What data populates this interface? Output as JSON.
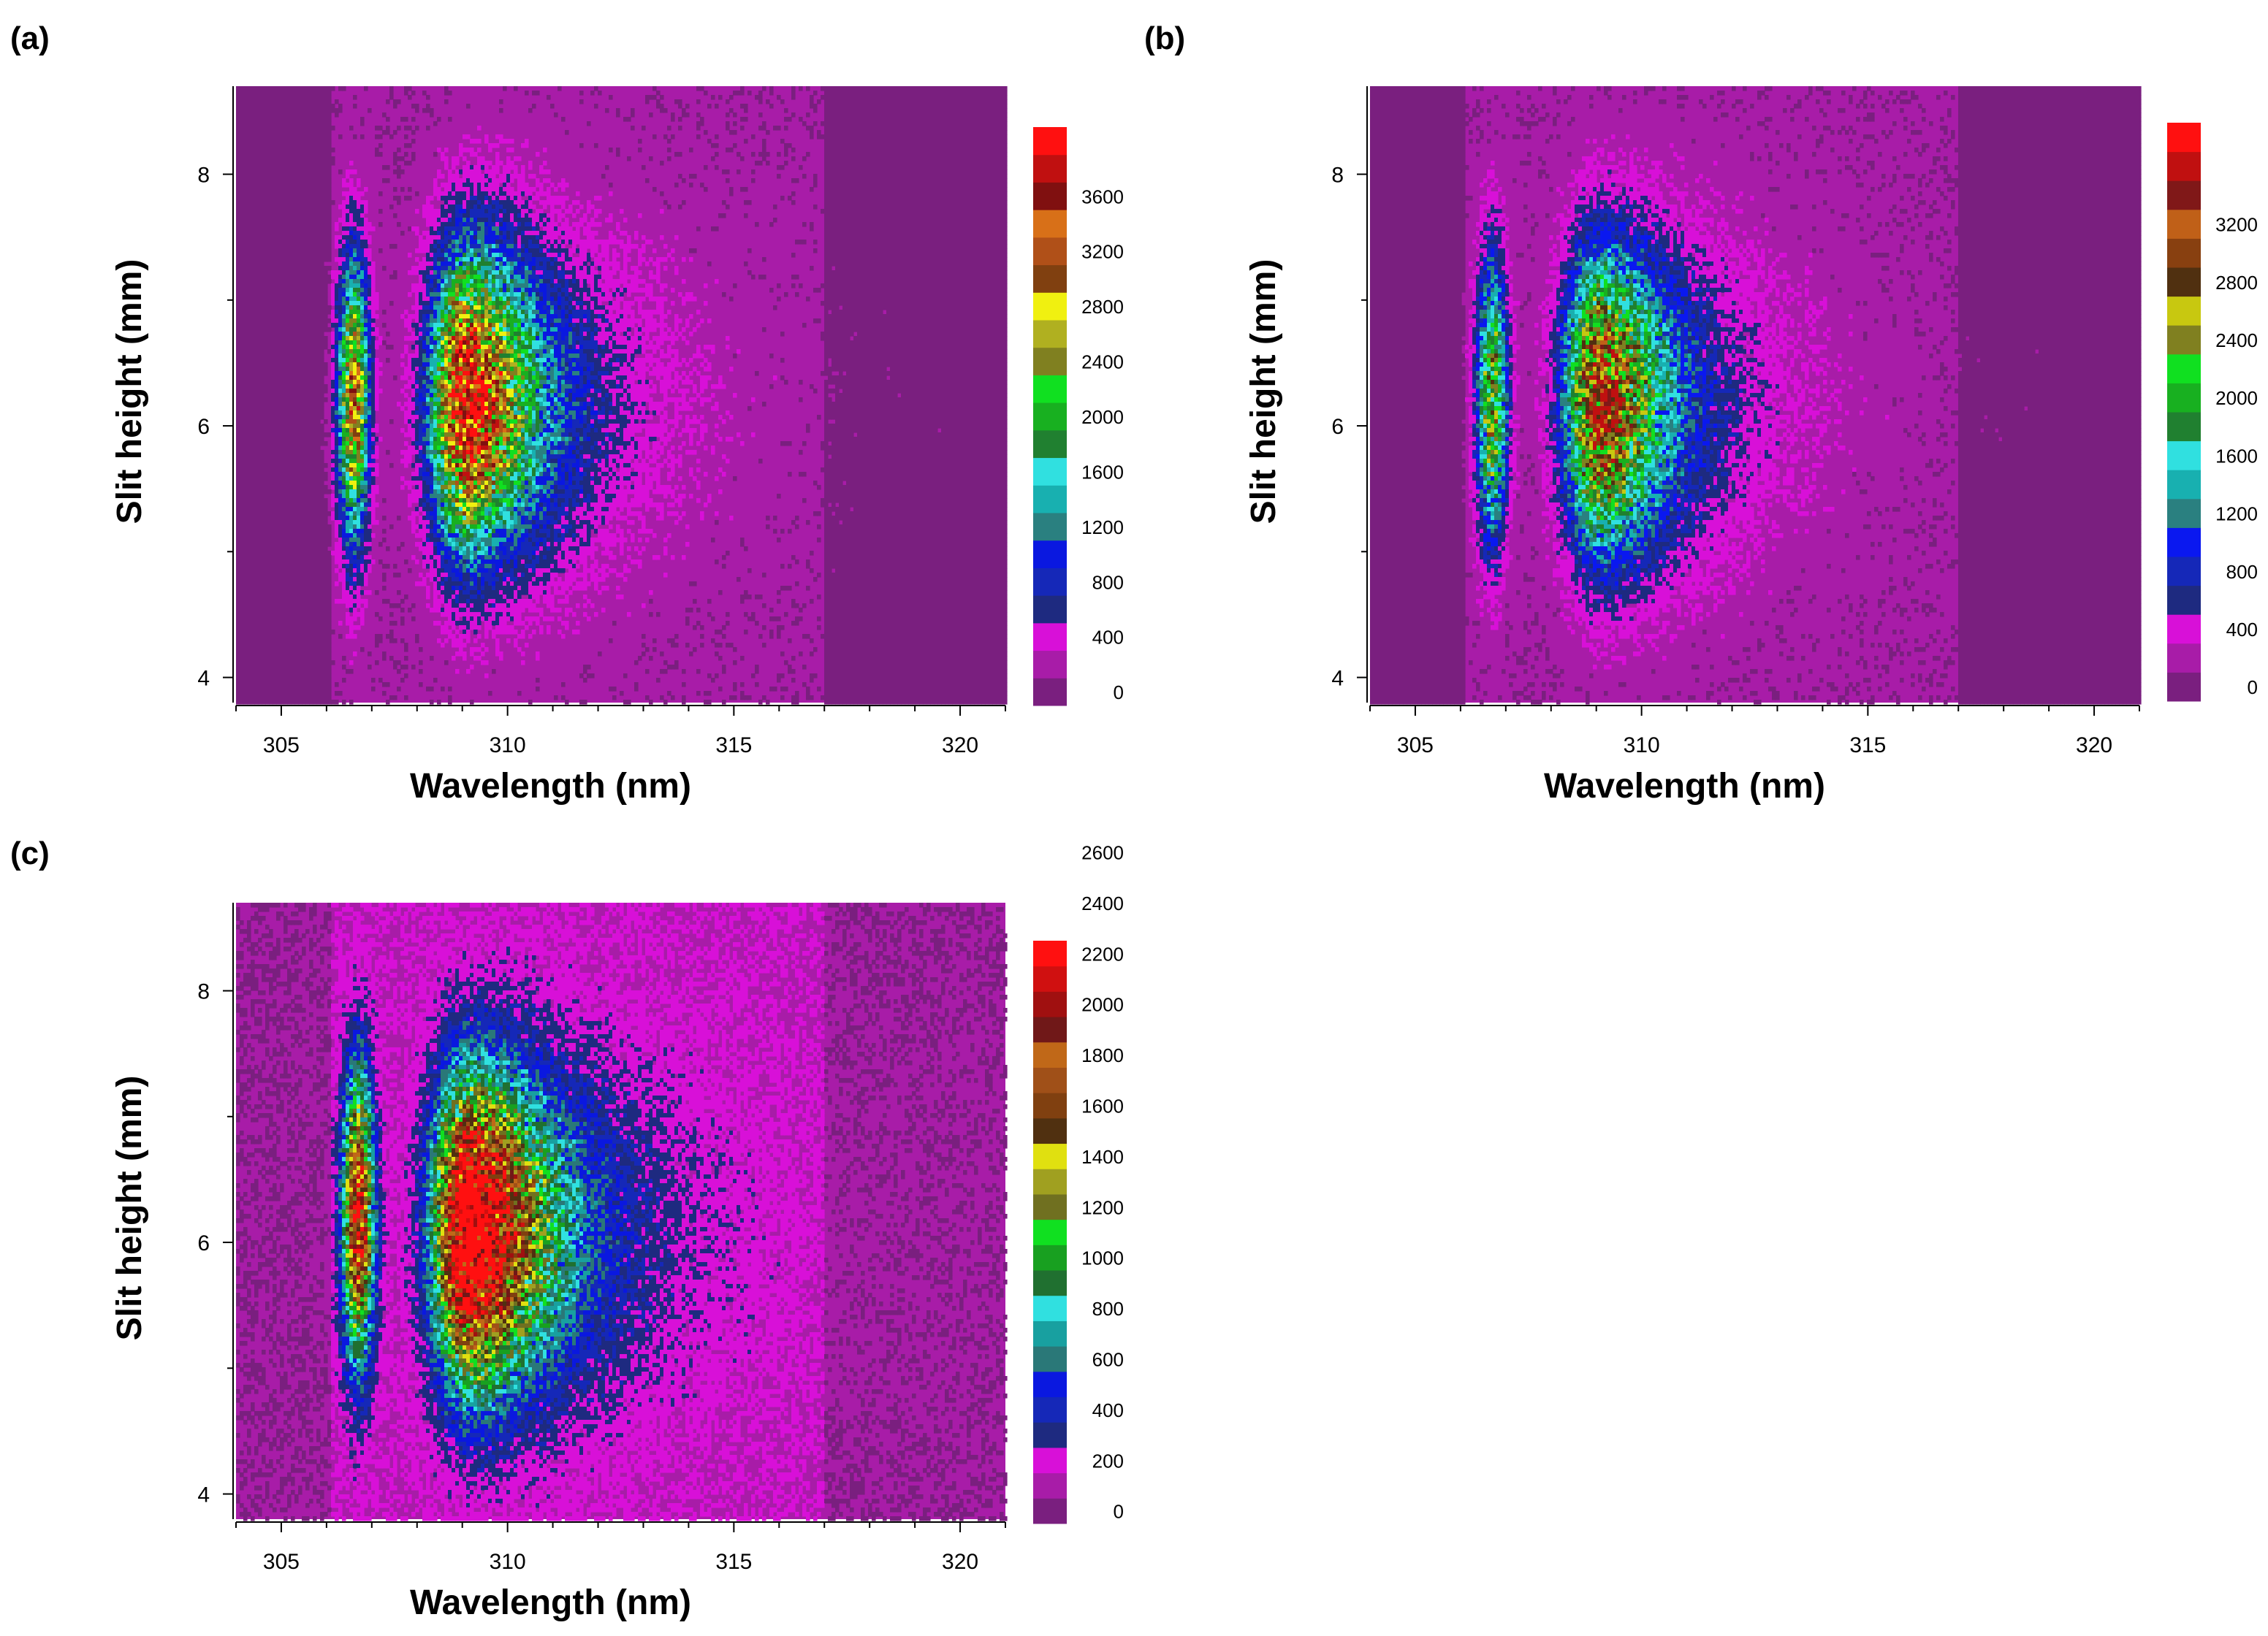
{
  "chart_data": [
    {
      "type": "heatmap",
      "panel_label": "(a)",
      "xlabel": "Wavelength (nm)",
      "ylabel": "Slit height (mm)",
      "xlim": [
        304,
        321
      ],
      "ylim": [
        3.8,
        8.7
      ],
      "x_ticks": [
        305,
        310,
        315,
        320
      ],
      "y_ticks": [
        4,
        6,
        8
      ],
      "colorbar": {
        "levels": [
          0,
          200,
          400,
          600,
          800,
          1000,
          1200,
          1400,
          1600,
          1800,
          2000,
          2200,
          2400,
          2600,
          2800,
          3000,
          3200,
          3400,
          3600,
          3800,
          4000
        ],
        "tick_labels": [
          "0",
          "400",
          "800",
          "1200",
          "1600",
          "2000",
          "2400",
          "2800",
          "3200",
          "3600"
        ],
        "colors": [
          "#7a1f7f",
          "#a81ca8",
          "#d810d8",
          "#1e2a80",
          "#1528b8",
          "#0a18e0",
          "#2a8080",
          "#18b0b0",
          "#30e0e0",
          "#208030",
          "#18b020",
          "#10e020",
          "#808020",
          "#b0b020",
          "#f0f010",
          "#804010",
          "#b05018",
          "#d87018",
          "#801010",
          "#c01010",
          "#ff1010"
        ]
      },
      "peaks": [
        {
          "wavelength_nm": 306.6,
          "height_mm": 6.2,
          "max_intensity": 2900
        },
        {
          "wavelength_nm": 309.1,
          "height_mm": 6.2,
          "max_intensity": 3900
        }
      ],
      "tail_extent_nm": 317.5,
      "background_intensity": 150
    },
    {
      "type": "heatmap",
      "panel_label": "(b)",
      "xlabel": "Wavelength (nm)",
      "ylabel": "Slit height (mm)",
      "xlim": [
        304,
        321
      ],
      "ylim": [
        3.8,
        8.7
      ],
      "x_ticks": [
        305,
        310,
        315,
        320
      ],
      "y_ticks": [
        4,
        6,
        8
      ],
      "colorbar": {
        "levels": [
          0,
          200,
          400,
          600,
          800,
          1000,
          1200,
          1400,
          1600,
          1800,
          2000,
          2200,
          2400,
          2600,
          2800,
          3000,
          3200,
          3400,
          3600
        ],
        "tick_labels": [
          "0",
          "400",
          "800",
          "1200",
          "1600",
          "2000",
          "2400",
          "2800",
          "3200"
        ],
        "colors": [
          "#7a1f7f",
          "#a81ca8",
          "#d810d8",
          "#1e2a80",
          "#1528b8",
          "#0a18f0",
          "#2a8080",
          "#18b0b0",
          "#30e0e0",
          "#208030",
          "#18b020",
          "#10e020",
          "#808020",
          "#c8c810",
          "#503010",
          "#884010",
          "#c06018",
          "#801818",
          "#c01010",
          "#ff1010"
        ]
      },
      "peaks": [
        {
          "wavelength_nm": 306.7,
          "height_mm": 6.2,
          "max_intensity": 2300
        },
        {
          "wavelength_nm": 309.1,
          "height_mm": 6.2,
          "max_intensity": 3300
        }
      ],
      "tail_extent_nm": 316.5,
      "background_intensity": 150
    },
    {
      "type": "heatmap",
      "panel_label": "(c)",
      "xlabel": "Wavelength (nm)",
      "ylabel": "Slit height (mm)",
      "xlim": [
        304,
        321
      ],
      "ylim": [
        3.8,
        8.7
      ],
      "x_ticks": [
        305,
        310,
        315,
        320
      ],
      "y_ticks": [
        4,
        6,
        8
      ],
      "colorbar": {
        "levels": [
          0,
          100,
          200,
          300,
          400,
          500,
          600,
          700,
          800,
          900,
          1000,
          1100,
          1200,
          1300,
          1400,
          1500,
          1600,
          1700,
          1800,
          1900,
          2000,
          2100,
          2200,
          2300,
          2400,
          2500,
          2600,
          2700
        ],
        "tick_labels": [
          "0",
          "200",
          "400",
          "600",
          "800",
          "1000",
          "1200",
          "1400",
          "1600",
          "1800",
          "2000",
          "2200",
          "2400",
          "2600"
        ],
        "colors": [
          "#7a1f7f",
          "#a81ca8",
          "#d810d8",
          "#1e2a80",
          "#1528b8",
          "#0a18e0",
          "#2a7878",
          "#18a0a0",
          "#30e0e0",
          "#207030",
          "#18a020",
          "#10e020",
          "#707020",
          "#a0a020",
          "#e0e010",
          "#503010",
          "#804010",
          "#a05018",
          "#c06818",
          "#701818",
          "#a01010",
          "#d01010",
          "#ff1010"
        ]
      },
      "peaks": [
        {
          "wavelength_nm": 306.7,
          "height_mm": 6.2,
          "max_intensity": 1900
        },
        {
          "wavelength_nm": 309.2,
          "height_mm": 6.1,
          "max_intensity": 2650
        }
      ],
      "tail_extent_nm": 317.0,
      "background_intensity": 120
    }
  ]
}
